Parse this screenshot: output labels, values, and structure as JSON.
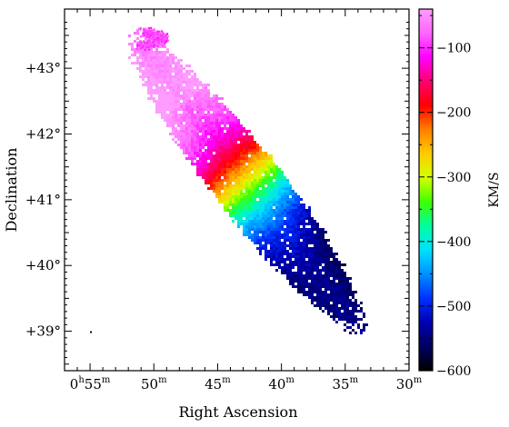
{
  "chart_data": {
    "type": "heatmap",
    "title": "",
    "xlabel": "Right Ascension",
    "ylabel": "Declination",
    "colorbar_label": "KM/S",
    "x_ticks": [
      {
        "h": "0",
        "m": "55",
        "show_h": true
      },
      {
        "h": "",
        "m": "50",
        "show_h": false
      },
      {
        "h": "",
        "m": "45",
        "show_h": false
      },
      {
        "h": "",
        "m": "40",
        "show_h": false
      },
      {
        "h": "",
        "m": "35",
        "show_h": false
      },
      {
        "h": "",
        "m": "30",
        "show_h": false
      }
    ],
    "y_ticks": [
      "+43°",
      "+42°",
      "+41°",
      "+40°",
      "+39°"
    ],
    "y_values": [
      43,
      42,
      41,
      40,
      39
    ],
    "xlim_minutes": [
      57,
      30
    ],
    "ylim_deg": [
      38.4,
      43.9
    ],
    "colorbar": {
      "ticks": [
        -100,
        -200,
        -300,
        -400,
        -500,
        -600
      ],
      "tick_labels": [
        "−100",
        "−200",
        "−300",
        "−400",
        "−500",
        "−600"
      ],
      "range": [
        -40,
        -600
      ],
      "colors": [
        "#ff9cff",
        "#ff66ff",
        "#ff00ff",
        "#ff0070",
        "#ff0000",
        "#ff8000",
        "#ffcc00",
        "#d4ff00",
        "#3dff00",
        "#00ffa0",
        "#00e0ff",
        "#0090ff",
        "#0030ff",
        "#0000b0",
        "#000060",
        "#000000"
      ]
    },
    "velocity_field": {
      "description_units": "km/s",
      "velocity_min": -600,
      "velocity_max": -40,
      "systemic_velocity": -300,
      "ra_center_minutes": 42.75,
      "dec_center_deg": 41.27,
      "major_axis_pa_deg": 38
    }
  }
}
